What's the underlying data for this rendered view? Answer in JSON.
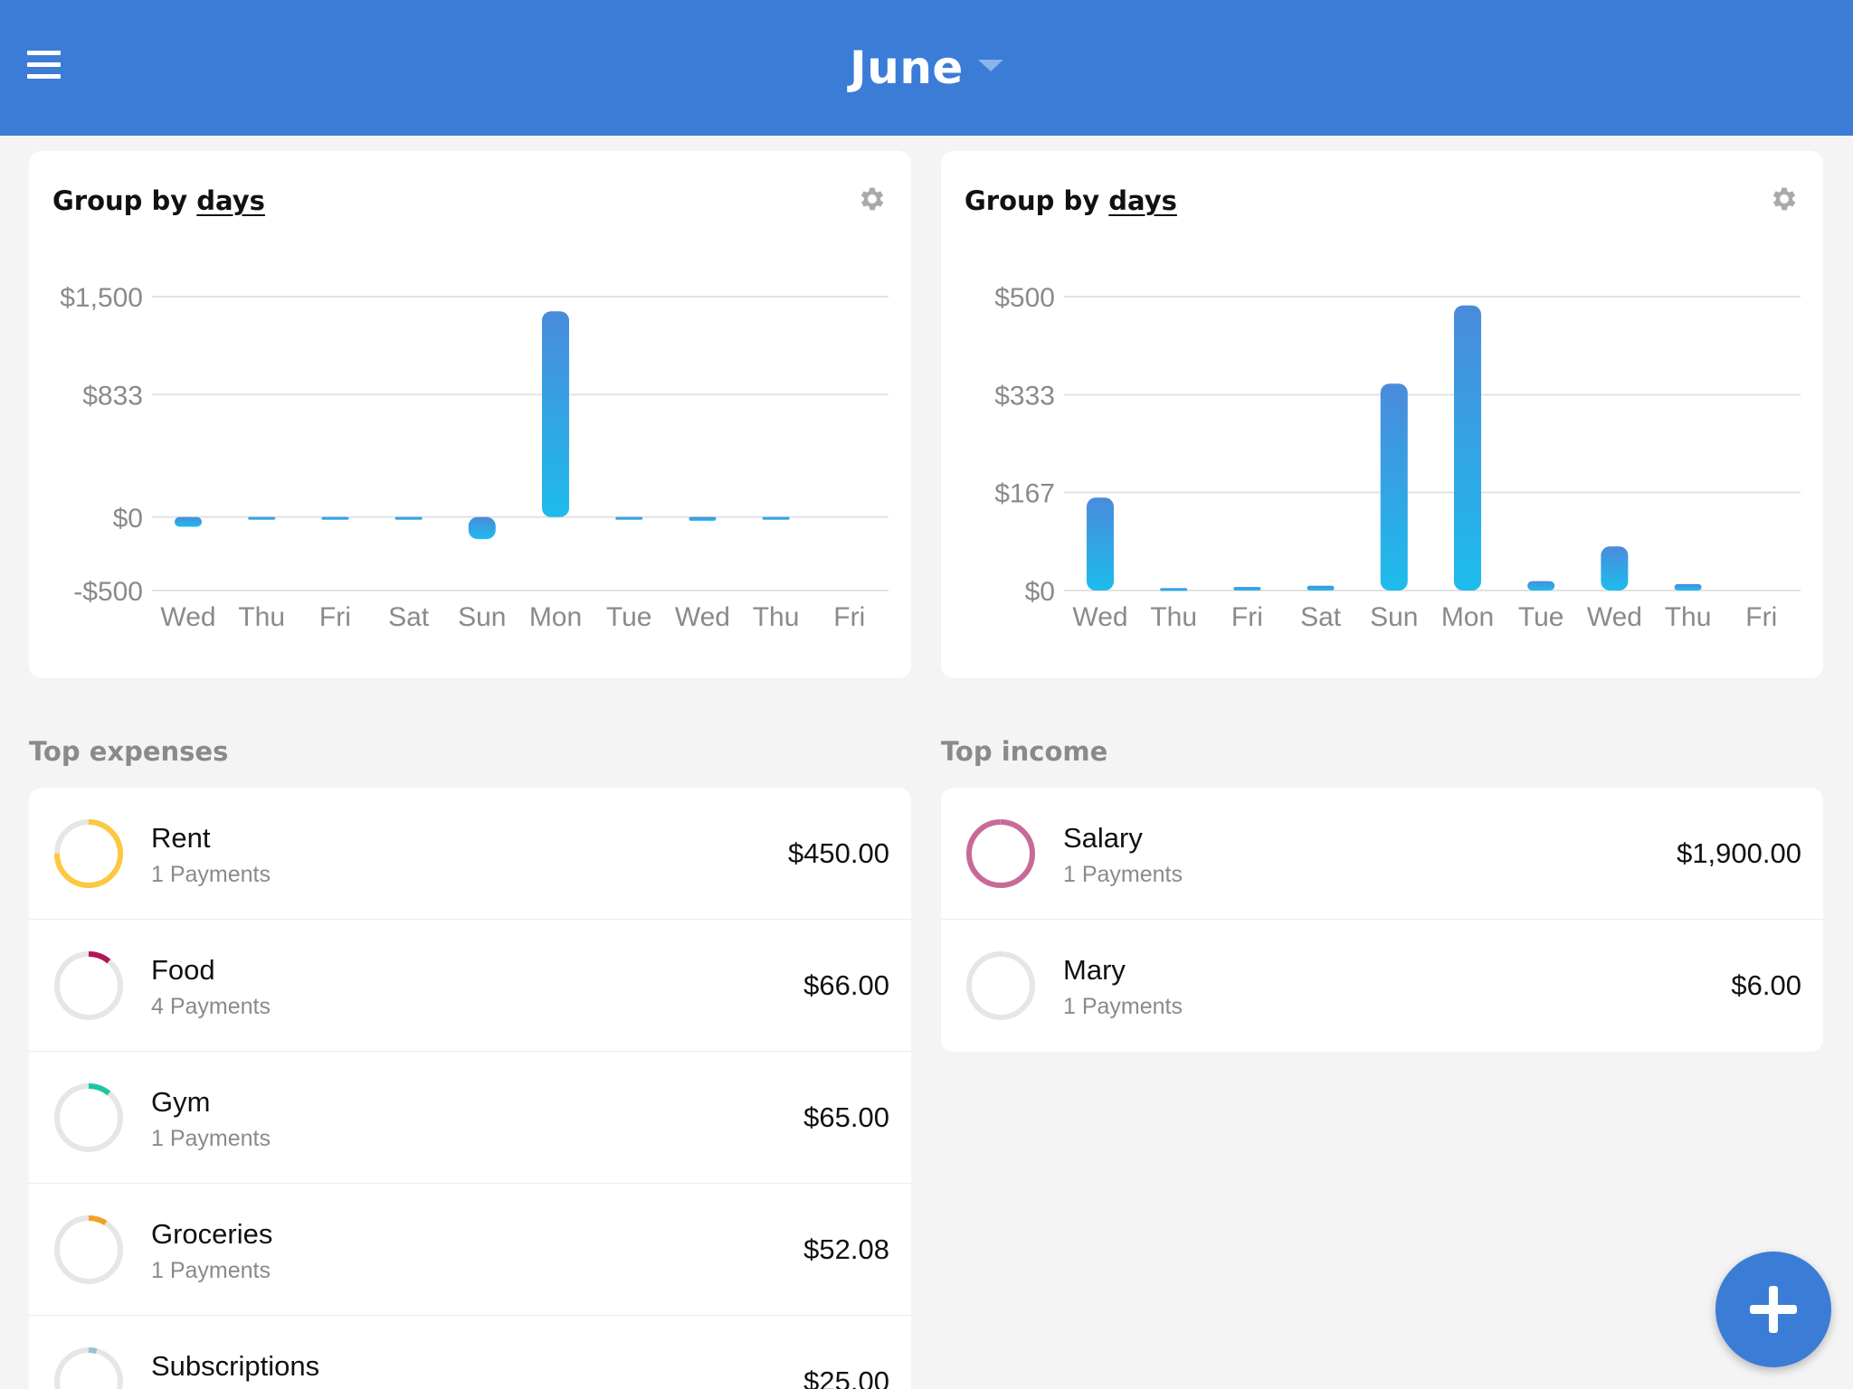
{
  "header": {
    "title": "June",
    "menu_icon": "hamburger-menu-icon",
    "caret_icon": "chevron-down-icon",
    "color": "#3b7cd6"
  },
  "charts": [
    {
      "title_prefix": "Group by ",
      "title_link": "days",
      "settings_icon": "gear-icon",
      "chart_data": {
        "type": "bar",
        "categories": [
          "Wed",
          "Thu",
          "Fri",
          "Sat",
          "Sun",
          "Mon",
          "Tue",
          "Wed",
          "Thu",
          "Fri"
        ],
        "values": [
          -66,
          -2,
          -3,
          -5,
          -150,
          1400,
          -5,
          -25,
          -2,
          0
        ],
        "yticks": [
          -500,
          0,
          833,
          1500
        ],
        "ytick_labels": [
          "-$500",
          "$0",
          "$833",
          "$1,500"
        ],
        "ylim": [
          -500,
          1500
        ],
        "grid": true
      }
    },
    {
      "title_prefix": "Group by ",
      "title_link": "days",
      "settings_icon": "gear-icon",
      "chart_data": {
        "type": "bar",
        "categories": [
          "Wed",
          "Thu",
          "Fri",
          "Sat",
          "Sun",
          "Mon",
          "Tue",
          "Wed",
          "Thu",
          "Fri"
        ],
        "values": [
          158,
          4,
          6,
          8,
          352,
          485,
          16,
          75,
          11,
          0
        ],
        "yticks": [
          0,
          167,
          333,
          500
        ],
        "ytick_labels": [
          "$0",
          "$167",
          "$333",
          "$500"
        ],
        "ylim": [
          0,
          500
        ],
        "grid": true
      }
    }
  ],
  "expenses": {
    "title": "Top expenses",
    "items": [
      {
        "name": "Rent",
        "sub": "1 Payments",
        "amount": "$450.00",
        "share": 0.75,
        "color": "#fbc83f"
      },
      {
        "name": "Food",
        "sub": "4 Payments",
        "amount": "$66.00",
        "share": 0.11,
        "color": "#b0175b"
      },
      {
        "name": "Gym",
        "sub": "1 Payments",
        "amount": "$65.00",
        "share": 0.11,
        "color": "#1fc6a3"
      },
      {
        "name": "Groceries",
        "sub": "1 Payments",
        "amount": "$52.08",
        "share": 0.09,
        "color": "#f5a028"
      },
      {
        "name": "Subscriptions",
        "sub": "",
        "amount": "$25.00",
        "share": 0.04,
        "color": "#9bc0d6"
      }
    ]
  },
  "income": {
    "title": "Top income",
    "items": [
      {
        "name": "Salary",
        "sub": "1 Payments",
        "amount": "$1,900.00",
        "share": 0.997,
        "color": "#c86a98"
      },
      {
        "name": "Mary",
        "sub": "1 Payments",
        "amount": "$6.00",
        "share": 0.003,
        "color": "#dddddd"
      }
    ]
  },
  "fab": {
    "icon": "plus-icon"
  }
}
